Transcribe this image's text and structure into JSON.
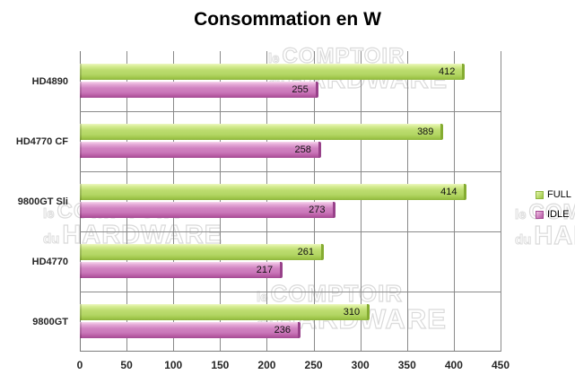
{
  "title": "Consommation en W",
  "chart_data": {
    "type": "bar",
    "orientation": "horizontal",
    "title": "Consommation en W",
    "categories": [
      "HD4890",
      "HD4770 CF",
      "9800GT Sli",
      "HD4770",
      "9800GT"
    ],
    "series": [
      {
        "name": "FULL",
        "color": "#b8da6b",
        "values": [
          412,
          389,
          414,
          261,
          310
        ]
      },
      {
        "name": "IDLE",
        "color": "#cd7fbe",
        "values": [
          255,
          258,
          273,
          217,
          236
        ]
      }
    ],
    "xlim": [
      0,
      450
    ],
    "x_ticks": [
      0,
      50,
      100,
      150,
      200,
      250,
      300,
      350,
      400,
      450
    ],
    "grid": "vertical major + category boundaries",
    "legend_position": "right",
    "value_labels": "inside bar end"
  },
  "legend": {
    "full_label": "FULL",
    "idle_label": "IDLE",
    "full_color": "#b8da6b",
    "idle_color": "#cd7fbe"
  },
  "watermark": {
    "line1_small": "le",
    "line1_big": "COMPTOIR",
    "line2_small": "du",
    "line2_big": "HARDWARE"
  }
}
